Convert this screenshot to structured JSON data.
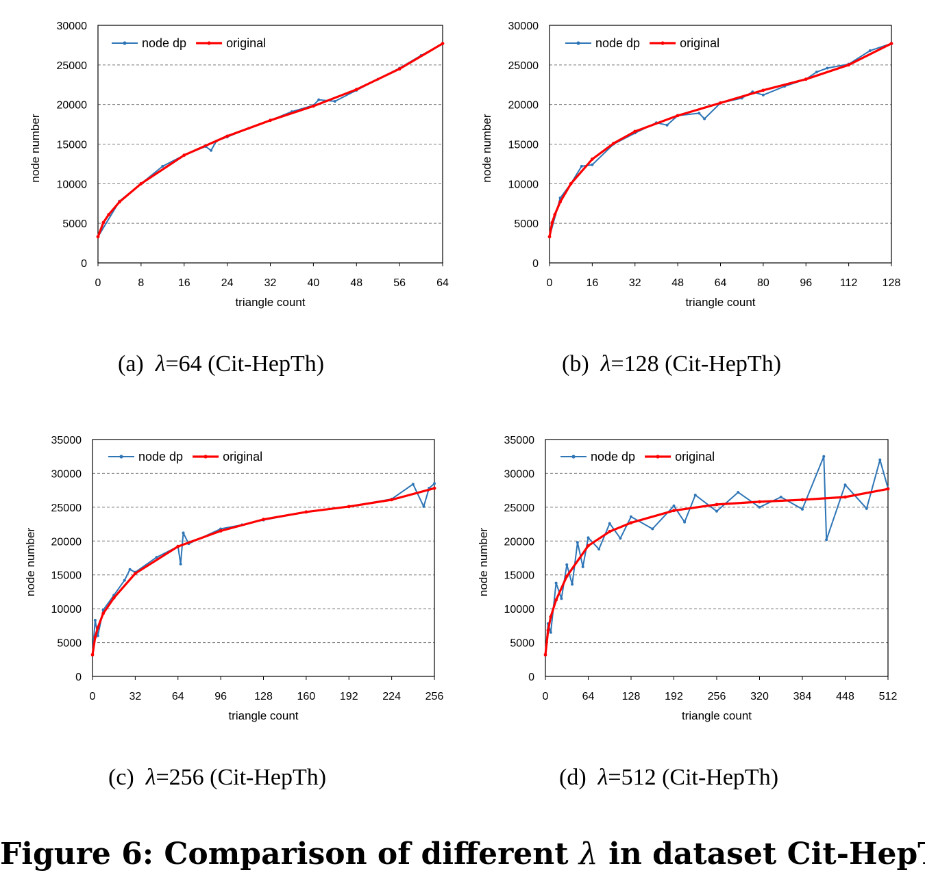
{
  "chart_data": [
    {
      "type": "line",
      "caption": {
        "label": "(a)",
        "lambda_symbol": "λ",
        "text": "=64 (Cit-HepTh)"
      },
      "xlabel": "triangle count",
      "ylabel": "node number",
      "xlim": [
        0,
        64
      ],
      "ylim": [
        0,
        30000
      ],
      "xticks": [
        0,
        8,
        16,
        24,
        32,
        40,
        48,
        56,
        64
      ],
      "yticks": [
        0,
        5000,
        10000,
        15000,
        20000,
        25000,
        30000
      ],
      "grid": "horizontal dashed",
      "legend_position": "top-left",
      "series": [
        {
          "name": "node dp",
          "color": "#2e75b6",
          "x": [
            0,
            4,
            8,
            12,
            16,
            20,
            21,
            22,
            24,
            28,
            32,
            36,
            40,
            41,
            44,
            48,
            52,
            56,
            60,
            64
          ],
          "y": [
            3300,
            7800,
            10000,
            12200,
            13600,
            14700,
            14200,
            15400,
            15900,
            17000,
            18000,
            19100,
            19900,
            20600,
            20400,
            21800,
            23200,
            24600,
            26200,
            27700
          ]
        },
        {
          "name": "original",
          "color": "#ff0000",
          "x": [
            0,
            1,
            2,
            4,
            8,
            16,
            24,
            32,
            40,
            48,
            56,
            64
          ],
          "y": [
            3300,
            5100,
            6100,
            7700,
            10000,
            13600,
            16000,
            18000,
            19800,
            21900,
            24500,
            27700
          ]
        }
      ]
    },
    {
      "type": "line",
      "caption": {
        "label": "(b)",
        "lambda_symbol": "λ",
        "text": "=128 (Cit-HepTh)"
      },
      "xlabel": "triangle count",
      "ylabel": "node number",
      "xlim": [
        0,
        128
      ],
      "ylim": [
        0,
        30000
      ],
      "xticks": [
        0,
        16,
        32,
        48,
        64,
        80,
        96,
        112,
        128
      ],
      "yticks": [
        0,
        5000,
        10000,
        15000,
        20000,
        25000,
        30000
      ],
      "grid": "horizontal dashed",
      "legend_position": "top-left",
      "series": [
        {
          "name": "node dp",
          "color": "#2e75b6",
          "x": [
            0,
            4,
            8,
            12,
            16,
            24,
            32,
            40,
            44,
            48,
            56,
            58,
            64,
            72,
            76,
            80,
            88,
            96,
            100,
            104,
            112,
            120,
            128
          ],
          "y": [
            3300,
            8200,
            10000,
            12200,
            12400,
            15000,
            16400,
            17700,
            17400,
            18600,
            18900,
            18200,
            20200,
            20800,
            21600,
            21200,
            22300,
            23200,
            24100,
            24600,
            25100,
            26800,
            27700
          ]
        },
        {
          "name": "original",
          "color": "#ff0000",
          "x": [
            0,
            1,
            2,
            4,
            8,
            16,
            24,
            32,
            48,
            64,
            80,
            96,
            112,
            128
          ],
          "y": [
            3300,
            5100,
            6100,
            7700,
            10000,
            13100,
            15100,
            16600,
            18600,
            20200,
            21800,
            23200,
            25000,
            27700
          ]
        }
      ]
    },
    {
      "type": "line",
      "caption": {
        "label": "(c)",
        "lambda_symbol": "λ",
        "text": "=256 (Cit-HepTh)"
      },
      "xlabel": "triangle count",
      "ylabel": "node number",
      "xlim": [
        0,
        256
      ],
      "ylim": [
        0,
        35000
      ],
      "xticks": [
        0,
        32,
        64,
        96,
        128,
        160,
        192,
        224,
        256
      ],
      "yticks": [
        0,
        5000,
        10000,
        15000,
        20000,
        25000,
        30000,
        35000
      ],
      "grid": "horizontal dashed",
      "legend_position": "top-left",
      "series": [
        {
          "name": "node dp",
          "color": "#2e75b6",
          "x": [
            0,
            2,
            4,
            8,
            16,
            24,
            28,
            32,
            48,
            64,
            66,
            68,
            72,
            96,
            112,
            128,
            160,
            192,
            224,
            240,
            248,
            252,
            256
          ],
          "y": [
            3200,
            8300,
            6000,
            9800,
            12000,
            14200,
            15800,
            15400,
            17600,
            19200,
            16600,
            21200,
            19600,
            21800,
            22400,
            23100,
            24300,
            25100,
            26200,
            28400,
            25100,
            27800,
            28500
          ]
        },
        {
          "name": "original",
          "color": "#ff0000",
          "x": [
            0,
            2,
            4,
            8,
            16,
            32,
            64,
            96,
            128,
            160,
            192,
            224,
            256
          ],
          "y": [
            3200,
            5800,
            7200,
            9300,
            11600,
            15200,
            19200,
            21500,
            23200,
            24300,
            25100,
            26100,
            27800
          ]
        }
      ]
    },
    {
      "type": "line",
      "caption": {
        "label": "(d)",
        "lambda_symbol": "λ",
        "text": "=512 (Cit-HepTh)"
      },
      "xlabel": "triangle count",
      "ylabel": "node number",
      "xlim": [
        0,
        512
      ],
      "ylim": [
        0,
        35000
      ],
      "xticks": [
        0,
        64,
        128,
        192,
        256,
        320,
        384,
        448,
        512
      ],
      "yticks": [
        0,
        5000,
        10000,
        15000,
        20000,
        25000,
        30000,
        35000
      ],
      "grid": "horizontal dashed",
      "legend_position": "top-left",
      "series": [
        {
          "name": "node dp",
          "color": "#2e75b6",
          "x": [
            0,
            4,
            8,
            16,
            24,
            32,
            40,
            48,
            56,
            64,
            80,
            96,
            112,
            128,
            160,
            192,
            208,
            224,
            256,
            288,
            320,
            352,
            384,
            416,
            420,
            448,
            480,
            500,
            512
          ],
          "y": [
            3200,
            7800,
            6500,
            13800,
            11500,
            16500,
            13600,
            19800,
            16200,
            20500,
            18800,
            22600,
            20400,
            23600,
            21800,
            25200,
            22800,
            26800,
            24400,
            27200,
            25000,
            26500,
            24700,
            32500,
            20200,
            28300,
            24800,
            32000,
            27800
          ]
        },
        {
          "name": "original",
          "color": "#ff0000",
          "x": [
            0,
            4,
            8,
            16,
            32,
            64,
            96,
            128,
            192,
            256,
            320,
            384,
            448,
            512
          ],
          "y": [
            3200,
            6800,
            8800,
            11300,
            14800,
            19300,
            21400,
            22700,
            24500,
            25400,
            25800,
            26100,
            26500,
            27700
          ]
        }
      ]
    }
  ],
  "figure_caption": {
    "prefix": "Figure 6: Comparison of different ",
    "lambda_symbol": "λ",
    "suffix": " in dataset Cit-HepTh"
  }
}
